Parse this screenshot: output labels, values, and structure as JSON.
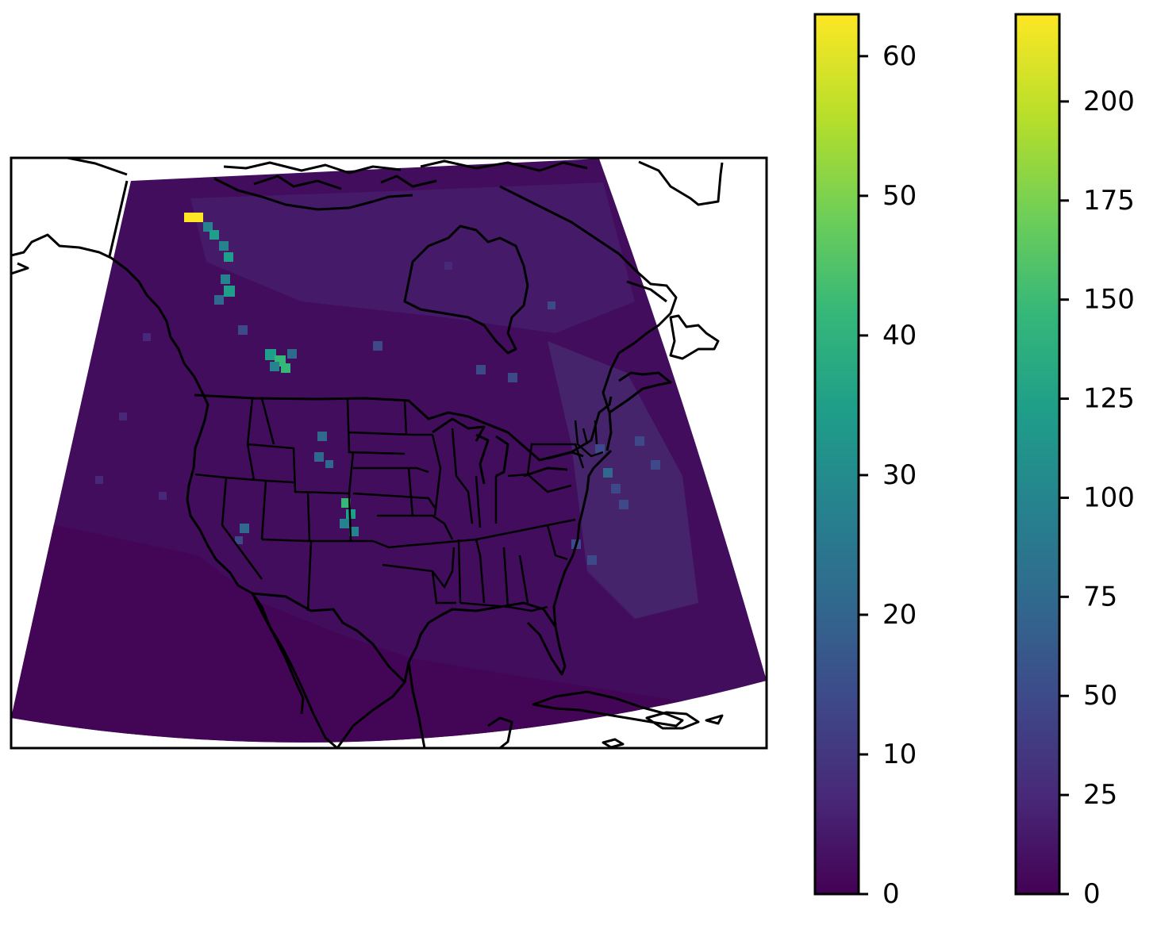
{
  "map": {
    "projection": "lambert-conformal",
    "region": "North America",
    "colormap": "viridis",
    "overlays": [
      "coastlines",
      "country-borders",
      "us-state-borders"
    ],
    "hotspots": [
      {
        "region": "northern Yukon / Mackenzie Mountains",
        "approx_value": 62
      },
      {
        "region": "Yukon to northern British Columbia corridor",
        "approx_value": 35
      },
      {
        "region": "northeastern British Columbia / Alberta",
        "approx_value": 45
      },
      {
        "region": "Colorado Front Range",
        "approx_value": 42
      },
      {
        "region": "Wyoming / Montana border",
        "approx_value": 25
      },
      {
        "region": "western Atlantic off the US East Coast",
        "approx_value": 18
      },
      {
        "region": "Nevada",
        "approx_value": 18
      }
    ]
  },
  "colorbars": [
    {
      "name": "colorbar-left",
      "min": 0,
      "max": 63,
      "ticks": [
        {
          "value": 0,
          "label": "0"
        },
        {
          "value": 10,
          "label": "10"
        },
        {
          "value": 20,
          "label": "20"
        },
        {
          "value": 30,
          "label": "30"
        },
        {
          "value": 40,
          "label": "40"
        },
        {
          "value": 50,
          "label": "50"
        },
        {
          "value": 60,
          "label": "60"
        }
      ]
    },
    {
      "name": "colorbar-right",
      "min": 0,
      "max": 222,
      "ticks": [
        {
          "value": 0,
          "label": "0"
        },
        {
          "value": 25,
          "label": "25"
        },
        {
          "value": 50,
          "label": "50"
        },
        {
          "value": 75,
          "label": "75"
        },
        {
          "value": 100,
          "label": "100"
        },
        {
          "value": 125,
          "label": "125"
        },
        {
          "value": 150,
          "label": "150"
        },
        {
          "value": 175,
          "label": "175"
        },
        {
          "value": 200,
          "label": "200"
        }
      ]
    }
  ],
  "colors": {
    "viridis": [
      "#440154",
      "#482878",
      "#3e4989",
      "#31688e",
      "#26828e",
      "#1f9e89",
      "#35b779",
      "#6ece58",
      "#b5de2b",
      "#fde725"
    ],
    "frame": "#000000",
    "background": "#ffffff"
  }
}
